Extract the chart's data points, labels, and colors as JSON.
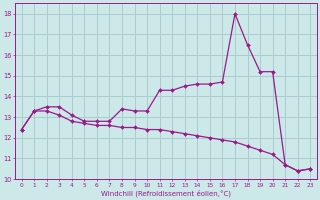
{
  "line1_x": [
    0,
    1,
    2,
    3,
    4,
    5,
    6,
    7,
    8,
    9,
    10,
    11,
    12,
    13,
    14,
    15,
    16,
    17,
    18,
    19,
    20,
    21,
    22,
    23
  ],
  "line1_y": [
    12.4,
    13.3,
    13.5,
    13.5,
    13.1,
    12.8,
    12.8,
    12.8,
    13.4,
    13.3,
    13.3,
    14.3,
    14.3,
    14.5,
    14.6,
    14.6,
    14.7,
    18.0,
    16.5,
    15.2,
    15.2,
    10.7,
    10.4,
    10.5
  ],
  "line2_x": [
    0,
    1,
    2,
    3,
    4,
    5,
    6,
    7,
    8,
    9,
    10,
    11,
    12,
    13,
    14,
    15,
    16,
    17,
    18,
    19,
    20,
    21,
    22,
    23
  ],
  "line2_y": [
    12.4,
    13.3,
    13.3,
    13.1,
    12.8,
    12.7,
    12.6,
    12.6,
    12.5,
    12.5,
    12.4,
    12.4,
    12.3,
    12.2,
    12.1,
    12.0,
    11.9,
    11.8,
    11.6,
    11.4,
    11.2,
    10.7,
    10.4,
    10.5
  ],
  "line_color": "#9b1a8a",
  "bg_color": "#cce8e8",
  "grid_color": "#aacccc",
  "xlabel": "Windchill (Refroidissement éolien,°C)",
  "xlim": [
    -0.5,
    23.5
  ],
  "ylim": [
    10,
    18.5
  ],
  "yticks": [
    10,
    11,
    12,
    13,
    14,
    15,
    16,
    17,
    18
  ],
  "xticks": [
    0,
    1,
    2,
    3,
    4,
    5,
    6,
    7,
    8,
    9,
    10,
    11,
    12,
    13,
    14,
    15,
    16,
    17,
    18,
    19,
    20,
    21,
    22,
    23
  ],
  "markersize": 2.0,
  "linewidth": 0.9
}
